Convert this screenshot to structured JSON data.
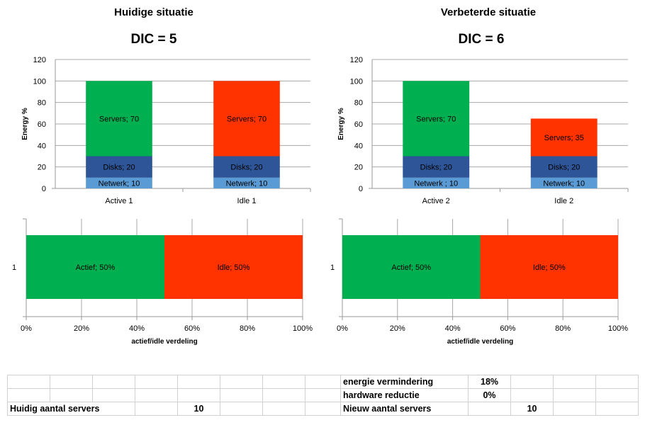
{
  "panels": [
    {
      "title": "Huidige situatie",
      "dic": "DIC = 5"
    },
    {
      "title": "Verbeterde situatie",
      "dic": "DIC = 6"
    }
  ],
  "colors": {
    "servers_active": "#00b050",
    "servers_idle": "#ff3300",
    "disks": "#2e5597",
    "netwerk": "#5b9bd5",
    "actief": "#00b050",
    "idle": "#ff3300"
  },
  "chart_data": [
    {
      "type": "bar",
      "stacked": true,
      "ylabel": "Energy %",
      "ylim": [
        0,
        120
      ],
      "yticks": [
        0,
        20,
        40,
        60,
        80,
        100,
        120
      ],
      "categories": [
        "Active 1",
        "Idle 1"
      ],
      "series": [
        {
          "name": "Netwerk",
          "values": [
            10,
            10
          ],
          "labels": [
            "Netwerk;  10",
            "Netwerk;  10"
          ]
        },
        {
          "name": "Disks",
          "values": [
            20,
            20
          ],
          "labels": [
            "Disks; 20",
            "Disks; 20"
          ]
        },
        {
          "name": "Servers",
          "values": [
            70,
            70
          ],
          "labels": [
            "Servers; 70",
            "Servers; 70"
          ]
        }
      ],
      "grid": true
    },
    {
      "type": "bar",
      "stacked": true,
      "ylabel": "Energy %",
      "ylim": [
        0,
        120
      ],
      "yticks": [
        0,
        20,
        40,
        60,
        80,
        100,
        120
      ],
      "categories": [
        "Active 2",
        "Idle 2"
      ],
      "series": [
        {
          "name": "Netwerk",
          "values": [
            10,
            10
          ],
          "labels": [
            "Netwerk  ; 10",
            "Netwerk;  10"
          ]
        },
        {
          "name": "Disks",
          "values": [
            20,
            20
          ],
          "labels": [
            "Disks; 20",
            "Disks; 20"
          ]
        },
        {
          "name": "Servers",
          "values": [
            70,
            35
          ],
          "labels": [
            "Servers; 70",
            "Servers; 35"
          ]
        }
      ],
      "grid": true
    },
    {
      "type": "bar",
      "orientation": "horizontal",
      "stacked": true,
      "percent": true,
      "xlabel": "actief/idle verdeling",
      "xticks": [
        "0%",
        "20%",
        "40%",
        "60%",
        "80%",
        "100%"
      ],
      "categories": [
        "1"
      ],
      "series": [
        {
          "name": "Actief",
          "values": [
            50
          ],
          "label": "Actief; 50%"
        },
        {
          "name": "Idle",
          "values": [
            50
          ],
          "label": "Idle; 50%"
        }
      ],
      "grid": true
    },
    {
      "type": "bar",
      "orientation": "horizontal",
      "stacked": true,
      "percent": true,
      "xlabel": "actief/idle verdeling",
      "xticks": [
        "0%",
        "20%",
        "40%",
        "60%",
        "80%",
        "100%"
      ],
      "categories": [
        "1"
      ],
      "series": [
        {
          "name": "Actief",
          "values": [
            50
          ],
          "label": "Actief; 50%"
        },
        {
          "name": "Idle",
          "values": [
            50
          ],
          "label": "Idle; 50%"
        }
      ],
      "grid": true
    }
  ],
  "sheet": {
    "row1": {
      "label": "energie vermindering",
      "value": "18%"
    },
    "row2": {
      "label": "hardware reductie",
      "value": "0%"
    },
    "row3": {
      "left_label": "Huidig aantal servers",
      "left_value": "10",
      "right_label": "Nieuw aantal servers",
      "right_value": "10"
    }
  }
}
